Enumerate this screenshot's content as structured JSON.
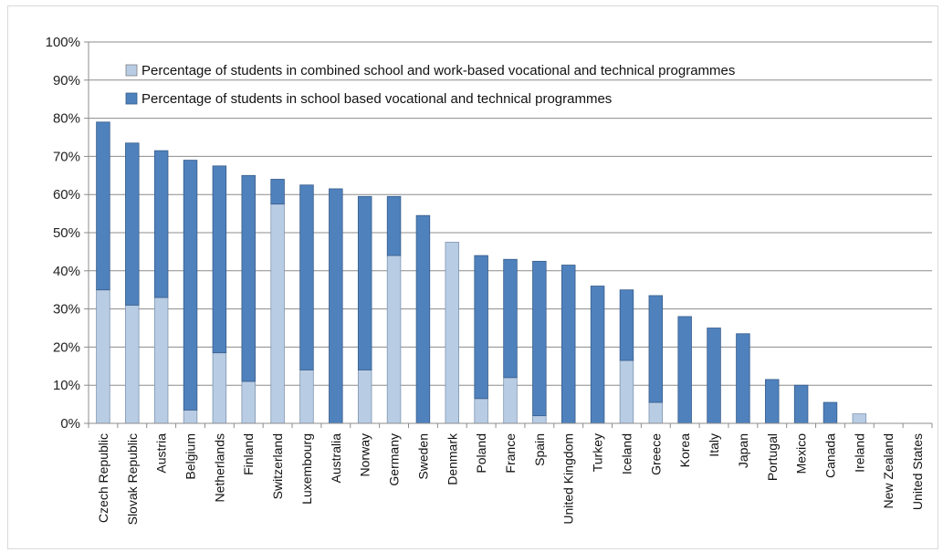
{
  "chart_data": {
    "type": "bar",
    "stacked": true,
    "categories": [
      "Czech Republic",
      "Slovak Republic",
      "Austria",
      "Belgium",
      "Netherlands",
      "Finland",
      "Switzerland",
      "Luxembourg",
      "Australia",
      "Norway",
      "Germany",
      "Sweden",
      "Denmark",
      "Poland",
      "France",
      "Spain",
      "United Kingdom",
      "Turkey",
      "Iceland",
      "Greece",
      "Korea",
      "Italy",
      "Japan",
      "Portugal",
      "Mexico",
      "Canada",
      "Ireland",
      "New Zealand",
      "United States"
    ],
    "series": [
      {
        "name": "Percentage of students in combined school and work-based vocational and technical programmes",
        "color": "#b8cce4",
        "values": [
          35,
          31,
          33,
          3.5,
          18.5,
          11,
          57.5,
          14,
          0,
          14,
          44,
          0,
          47.5,
          6.5,
          12,
          2,
          0,
          0,
          16.5,
          5.5,
          0,
          0,
          0,
          0,
          0,
          0,
          2.5,
          0,
          0
        ]
      },
      {
        "name": "Percentage of students in school based vocational and technical programmes",
        "color": "#4f81bd",
        "values": [
          44,
          42.5,
          38.5,
          65.5,
          49,
          54,
          6.5,
          48.5,
          61.5,
          45.5,
          15.5,
          54.5,
          0,
          37.5,
          31,
          40.5,
          41.5,
          36,
          18.5,
          28,
          28,
          25,
          23.5,
          11.5,
          10,
          5.5,
          0,
          0,
          0
        ]
      }
    ],
    "yticks": [
      "0%",
      "10%",
      "20%",
      "30%",
      "40%",
      "50%",
      "60%",
      "70%",
      "80%",
      "90%",
      "100%"
    ],
    "ylim": [
      0,
      100
    ],
    "grid": true,
    "legend_position": "top-left",
    "title": "",
    "xlabel": "",
    "ylabel": ""
  }
}
